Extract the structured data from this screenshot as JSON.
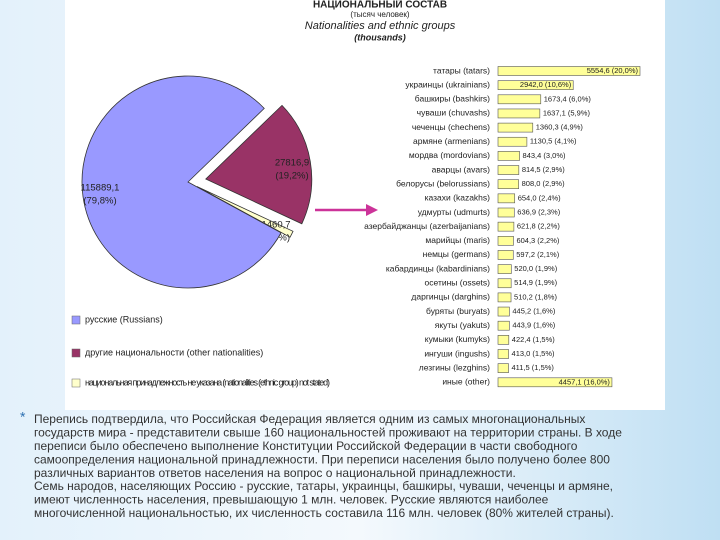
{
  "header": {
    "title_ru": "НАЦИОНАЛЬНЫЙ СОСТАВ",
    "unit_ru": "(тысяч человек)",
    "title_en": "Nationalities and ethnic groups",
    "unit_en": "(thousands)"
  },
  "chart_data": [
    {
      "type": "pie",
      "categories": [
        "русские (Russians)",
        "другие национальности (other nationalities)",
        "национальная принадлежность не указана (nationalities (ethnic group) not stated)"
      ],
      "values": [
        115889.1,
        27816.9,
        1460.7
      ],
      "value_labels": [
        "115889,1",
        "27816,9",
        "1460,7"
      ],
      "percent_labels": [
        "(79,8%)",
        "(19,2%)",
        "(1,0%)"
      ],
      "colors": [
        "#9999ff",
        "#993366",
        "#ffffcc"
      ]
    },
    {
      "type": "hbar",
      "categories": [
        "татары (tatars)",
        "украинцы (ukrainians)",
        "башкиры (bashkirs)",
        "чуваши (chuvashs)",
        "чеченцы (chechens)",
        "армяне (armenians)",
        "мордва (mordovians)",
        "аварцы (avars)",
        "белорусы (belorussians)",
        "казахи (kazakhs)",
        "удмурты (udmurts)",
        "азербайджанцы (azerbaijanians)",
        "марийцы (maris)",
        "немцы (germans)",
        "кабардинцы (kabardinians)",
        "осетины (ossets)",
        "даргинцы (darghins)",
        "буряты (buryats)",
        "якуты (yakuts)",
        "кумыки (kumyks)",
        "ингуши (ingushs)",
        "лезгины (lezghins)",
        "иные (other)"
      ],
      "values": [
        5554.6,
        2942.0,
        1673.4,
        1637.1,
        1360.3,
        1130.5,
        843.4,
        814.5,
        808.0,
        654.0,
        636.9,
        621.8,
        604.3,
        597.2,
        520.0,
        514.9,
        510.2,
        445.2,
        443.9,
        422.4,
        413.0,
        411.5,
        4457.1
      ],
      "value_labels": [
        "5554,6 (20,0%)",
        "2942,0 (10,6%)",
        "1673,4 (6,0%)",
        "1637,1 (5,9%)",
        "1360,3 (4,9%)",
        "1130,5 (4,1%)",
        "843,4 (3,0%)",
        "814,5 (2,9%)",
        "808,0 (2,9%)",
        "654,0 (2,4%)",
        "636,9 (2,3%)",
        "621,8 (2,2%)",
        "604,3 (2,2%)",
        "597,2 (2,1%)",
        "520,0 (1,9%)",
        "514,9 (1,9%)",
        "510,2 (1,8%)",
        "445,2 (1,6%)",
        "443,9 (1,6%)",
        "422,4 (1,5%)",
        "413,0 (1,5%)",
        "411,5 (1,5%)",
        "4457,1 (16,0%)"
      ],
      "color": "#ffff99"
    }
  ],
  "caption": {
    "bullet": "*",
    "lines": [
      "Перепись подтвердила, что Российская Федерация является одним из самых многонациональных",
      "государств мира - представители свыше 160 национальностей проживают на территории страны. В ходе",
      "переписи было обеспечено выполнение Конституции Российской Федерации в части свободного",
      "самоопределения национальной принадлежности. При переписи населения было получено более 800",
      "различных вариантов ответов населения на вопрос о национальной принадлежности.",
      "Семь народов, населяющих Россию - русские, татары, украинцы, башкиры, чуваши, чеченцы и армяне,",
      "имеют численность населения, превышающую 1 млн. человек. Русские являются наиболее",
      "многочисленной национальностью, их численность составила 116 млн. человек (80% жителей страны)."
    ]
  }
}
